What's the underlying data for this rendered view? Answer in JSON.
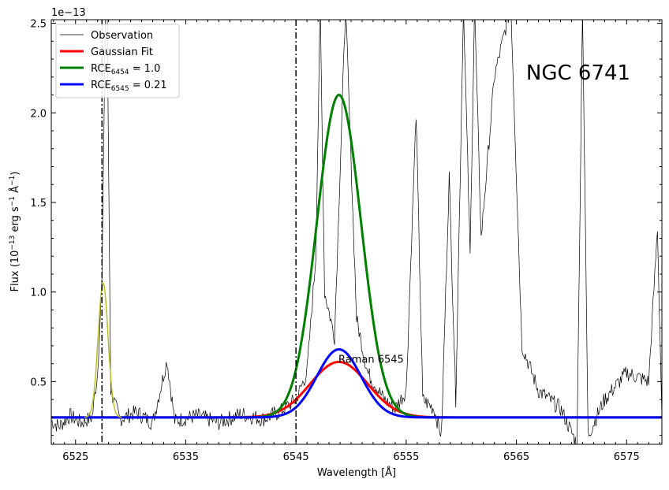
{
  "chart_data": {
    "type": "line",
    "title": "",
    "annotation_title": "NGC 6741",
    "xlabel": "Wavelength [Å]",
    "ylabel_parts": {
      "pre": "Flux (10",
      "exp1": "−13",
      "mid": " erg s",
      "exp2": "−1",
      "mid2": " Å",
      "exp3": "−1",
      "post": ")"
    },
    "offset_text": "1e−13",
    "xlim": [
      6522.8,
      6578.2
    ],
    "ylim": [
      0.15,
      2.52
    ],
    "xticks": [
      6525,
      6535,
      6545,
      6555,
      6565,
      6575
    ],
    "xtick_labels": [
      "6525",
      "6535",
      "6545",
      "6555",
      "6565",
      "6575"
    ],
    "yticks": [
      0.5,
      1.0,
      1.5,
      2.0,
      2.5
    ],
    "ytick_labels": [
      "0.5",
      "1.0",
      "1.5",
      "2.0",
      "2.5"
    ],
    "vlines": [
      6527.4,
      6545.0
    ],
    "annotations": [
      {
        "text": "Raman 6545",
        "x": 6549.0,
        "y": 0.6
      }
    ],
    "legend_position": "upper-left",
    "baseline": 0.3,
    "series": [
      {
        "name": "Observation",
        "legend_label": "Observation",
        "color": "#000000",
        "kind": "observation",
        "points": [
          [
            6522.8,
            0.28
          ],
          [
            6523.5,
            0.25
          ],
          [
            6524.5,
            0.31
          ],
          [
            6525.5,
            0.27
          ],
          [
            6526.5,
            0.3
          ],
          [
            6527.0,
            0.55
          ],
          [
            6527.4,
            1.07
          ],
          [
            6527.8,
            3.0
          ],
          [
            6528.2,
            0.45
          ],
          [
            6529.0,
            0.29
          ],
          [
            6530.5,
            0.33
          ],
          [
            6532.0,
            0.27
          ],
          [
            6533.3,
            0.62
          ],
          [
            6534.0,
            0.28
          ],
          [
            6536.0,
            0.31
          ],
          [
            6538.0,
            0.27
          ],
          [
            6540.0,
            0.32
          ],
          [
            6542.0,
            0.29
          ],
          [
            6543.5,
            0.33
          ],
          [
            6545.0,
            0.4
          ],
          [
            6546.0,
            0.55
          ],
          [
            6546.8,
            1.2
          ],
          [
            6547.2,
            2.6
          ],
          [
            6547.6,
            1.0
          ],
          [
            6548.5,
            0.75
          ],
          [
            6549.5,
            2.6
          ],
          [
            6550.5,
            0.85
          ],
          [
            6551.5,
            0.55
          ],
          [
            6553.0,
            0.4
          ],
          [
            6554.0,
            0.35
          ],
          [
            6555.0,
            0.45
          ],
          [
            6555.9,
            2.0
          ],
          [
            6556.5,
            0.4
          ],
          [
            6557.5,
            0.35
          ],
          [
            6558.2,
            0.2
          ],
          [
            6558.9,
            1.65
          ],
          [
            6559.5,
            0.4
          ],
          [
            6560.2,
            2.6
          ],
          [
            6560.8,
            1.2
          ],
          [
            6561.2,
            2.6
          ],
          [
            6561.8,
            1.3
          ],
          [
            6563.0,
            2.2
          ],
          [
            6564.5,
            2.6
          ],
          [
            6565.5,
            0.7
          ],
          [
            6567.0,
            0.45
          ],
          [
            6569.0,
            0.35
          ],
          [
            6570.5,
            0.15
          ],
          [
            6571.0,
            2.6
          ],
          [
            6571.5,
            0.2
          ],
          [
            6573.0,
            0.4
          ],
          [
            6575.0,
            0.55
          ],
          [
            6577.0,
            0.5
          ],
          [
            6577.8,
            1.36
          ],
          [
            6578.2,
            0.3
          ]
        ]
      },
      {
        "name": "Gaussian Fit",
        "legend_label": "Gaussian Fit",
        "color": "#ff0000",
        "kind": "gaussian",
        "amplitude": 0.31,
        "center": 6548.9,
        "sigma": 2.6
      },
      {
        "name": "RCE6454 = 1.0",
        "legend_label": "RCE",
        "legend_sub": "6454",
        "legend_tail": " = 1.0",
        "color": "#008000",
        "kind": "gaussian",
        "amplitude": 1.8,
        "center": 6548.9,
        "sigma": 2.0
      },
      {
        "name": "RCE6545 = 0.21",
        "legend_label": "RCE",
        "legend_sub": "6545",
        "legend_tail": " = 0.21",
        "color": "#0000ff",
        "kind": "gaussian",
        "amplitude": 0.38,
        "center": 6548.9,
        "sigma": 2.0
      },
      {
        "name": "",
        "color": "#bcbd22",
        "kind": "gaussian",
        "amplitude": 0.75,
        "center": 6527.5,
        "sigma": 0.45,
        "range": [
          6525.8,
          6529.2
        ],
        "with_baseline": false,
        "base": 0.3
      }
    ]
  }
}
